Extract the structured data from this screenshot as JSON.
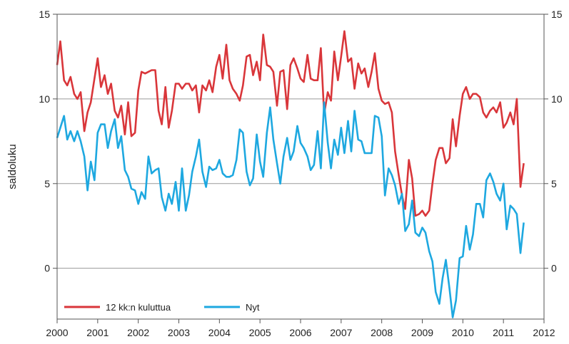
{
  "chart_data": {
    "type": "line",
    "ylabel": "saldoluku",
    "xlim": [
      2000,
      2012
    ],
    "ylim": [
      -3,
      15
    ],
    "x_ticks": [
      "2000",
      "2001",
      "2002",
      "2003",
      "2004",
      "2005",
      "2006",
      "2007",
      "2008",
      "2009",
      "2010",
      "2011",
      "2012"
    ],
    "y_ticks": [
      "0",
      "5",
      "10",
      "15"
    ],
    "y_gridlines": [
      0,
      5,
      10
    ],
    "grid": true,
    "legend_position": "bottom-left",
    "series": [
      {
        "name": "12 kk:n kuluttua",
        "color": "#d9363a",
        "values": [
          [
            2000.0,
            12.0
          ],
          [
            2000.08,
            13.4
          ],
          [
            2000.17,
            11.1
          ],
          [
            2000.25,
            10.8
          ],
          [
            2000.33,
            11.3
          ],
          [
            2000.42,
            10.3
          ],
          [
            2000.5,
            10.0
          ],
          [
            2000.58,
            10.4
          ],
          [
            2000.67,
            8.1
          ],
          [
            2000.75,
            9.2
          ],
          [
            2000.83,
            9.8
          ],
          [
            2000.92,
            11.2
          ],
          [
            2001.0,
            12.4
          ],
          [
            2001.08,
            10.7
          ],
          [
            2001.17,
            11.4
          ],
          [
            2001.25,
            10.3
          ],
          [
            2001.33,
            10.9
          ],
          [
            2001.42,
            9.3
          ],
          [
            2001.5,
            8.9
          ],
          [
            2001.58,
            9.6
          ],
          [
            2001.67,
            7.9
          ],
          [
            2001.75,
            9.8
          ],
          [
            2001.83,
            7.8
          ],
          [
            2001.92,
            8.0
          ],
          [
            2002.0,
            10.5
          ],
          [
            2002.08,
            11.6
          ],
          [
            2002.17,
            11.5
          ],
          [
            2002.25,
            11.6
          ],
          [
            2002.33,
            11.7
          ],
          [
            2002.42,
            11.7
          ],
          [
            2002.5,
            9.3
          ],
          [
            2002.58,
            8.5
          ],
          [
            2002.67,
            10.7
          ],
          [
            2002.75,
            8.3
          ],
          [
            2002.83,
            9.3
          ],
          [
            2002.92,
            10.9
          ],
          [
            2003.0,
            10.9
          ],
          [
            2003.08,
            10.6
          ],
          [
            2003.17,
            10.9
          ],
          [
            2003.25,
            10.9
          ],
          [
            2003.33,
            10.5
          ],
          [
            2003.42,
            10.8
          ],
          [
            2003.5,
            9.2
          ],
          [
            2003.58,
            10.8
          ],
          [
            2003.67,
            10.5
          ],
          [
            2003.75,
            11.1
          ],
          [
            2003.83,
            10.4
          ],
          [
            2003.92,
            11.9
          ],
          [
            2004.0,
            12.6
          ],
          [
            2004.08,
            11.2
          ],
          [
            2004.17,
            13.2
          ],
          [
            2004.25,
            11.1
          ],
          [
            2004.33,
            10.6
          ],
          [
            2004.42,
            10.3
          ],
          [
            2004.5,
            9.9
          ],
          [
            2004.58,
            10.8
          ],
          [
            2004.67,
            12.5
          ],
          [
            2004.75,
            12.6
          ],
          [
            2004.83,
            11.4
          ],
          [
            2004.92,
            12.2
          ],
          [
            2005.0,
            11.1
          ],
          [
            2005.08,
            13.8
          ],
          [
            2005.17,
            12.0
          ],
          [
            2005.25,
            11.9
          ],
          [
            2005.33,
            11.6
          ],
          [
            2005.42,
            9.6
          ],
          [
            2005.5,
            11.6
          ],
          [
            2005.58,
            11.7
          ],
          [
            2005.67,
            9.4
          ],
          [
            2005.75,
            12.0
          ],
          [
            2005.83,
            12.4
          ],
          [
            2005.92,
            11.8
          ],
          [
            2006.0,
            11.2
          ],
          [
            2006.08,
            11.0
          ],
          [
            2006.17,
            12.6
          ],
          [
            2006.25,
            11.2
          ],
          [
            2006.33,
            11.1
          ],
          [
            2006.42,
            11.1
          ],
          [
            2006.5,
            13.0
          ],
          [
            2006.58,
            9.1
          ],
          [
            2006.67,
            10.4
          ],
          [
            2006.75,
            9.9
          ],
          [
            2006.83,
            12.8
          ],
          [
            2006.92,
            11.1
          ],
          [
            2007.0,
            12.5
          ],
          [
            2007.08,
            14.0
          ],
          [
            2007.17,
            12.2
          ],
          [
            2007.25,
            12.4
          ],
          [
            2007.33,
            10.6
          ],
          [
            2007.42,
            12.1
          ],
          [
            2007.5,
            11.5
          ],
          [
            2007.58,
            11.8
          ],
          [
            2007.67,
            10.7
          ],
          [
            2007.75,
            11.6
          ],
          [
            2007.83,
            12.7
          ],
          [
            2007.92,
            10.6
          ],
          [
            2008.0,
            9.9
          ],
          [
            2008.08,
            9.7
          ],
          [
            2008.17,
            9.8
          ],
          [
            2008.25,
            9.2
          ],
          [
            2008.33,
            6.9
          ],
          [
            2008.42,
            5.5
          ],
          [
            2008.5,
            4.3
          ],
          [
            2008.58,
            3.5
          ],
          [
            2008.67,
            6.4
          ],
          [
            2008.75,
            5.3
          ],
          [
            2008.83,
            3.1
          ],
          [
            2008.92,
            3.2
          ],
          [
            2009.0,
            3.4
          ],
          [
            2009.08,
            3.1
          ],
          [
            2009.17,
            3.4
          ],
          [
            2009.25,
            5.0
          ],
          [
            2009.33,
            6.4
          ],
          [
            2009.42,
            7.1
          ],
          [
            2009.5,
            7.1
          ],
          [
            2009.58,
            6.2
          ],
          [
            2009.67,
            6.5
          ],
          [
            2009.75,
            8.8
          ],
          [
            2009.83,
            7.2
          ],
          [
            2009.92,
            9.0
          ],
          [
            2010.0,
            10.3
          ],
          [
            2010.08,
            10.7
          ],
          [
            2010.17,
            10.0
          ],
          [
            2010.25,
            10.3
          ],
          [
            2010.33,
            10.3
          ],
          [
            2010.42,
            10.1
          ],
          [
            2010.5,
            9.2
          ],
          [
            2010.58,
            8.9
          ],
          [
            2010.67,
            9.3
          ],
          [
            2010.75,
            9.5
          ],
          [
            2010.83,
            9.2
          ],
          [
            2010.92,
            9.8
          ],
          [
            2011.0,
            8.3
          ],
          [
            2011.08,
            8.6
          ],
          [
            2011.17,
            9.2
          ],
          [
            2011.25,
            8.5
          ],
          [
            2011.33,
            10.0
          ],
          [
            2011.42,
            4.8
          ],
          [
            2011.5,
            6.2
          ]
        ]
      },
      {
        "name": "Nyt",
        "color": "#1ea8e0",
        "values": [
          [
            2000.0,
            7.7
          ],
          [
            2000.08,
            8.3
          ],
          [
            2000.17,
            9.0
          ],
          [
            2000.25,
            7.6
          ],
          [
            2000.33,
            8.1
          ],
          [
            2000.42,
            7.5
          ],
          [
            2000.5,
            8.1
          ],
          [
            2000.58,
            7.5
          ],
          [
            2000.67,
            6.6
          ],
          [
            2000.75,
            4.6
          ],
          [
            2000.83,
            6.3
          ],
          [
            2000.92,
            5.2
          ],
          [
            2001.0,
            8.0
          ],
          [
            2001.08,
            8.5
          ],
          [
            2001.17,
            8.5
          ],
          [
            2001.25,
            7.1
          ],
          [
            2001.33,
            8.1
          ],
          [
            2001.42,
            8.8
          ],
          [
            2001.5,
            7.1
          ],
          [
            2001.58,
            7.8
          ],
          [
            2001.67,
            5.8
          ],
          [
            2001.75,
            5.4
          ],
          [
            2001.83,
            4.7
          ],
          [
            2001.92,
            4.6
          ],
          [
            2002.0,
            3.8
          ],
          [
            2002.08,
            4.5
          ],
          [
            2002.17,
            4.1
          ],
          [
            2002.25,
            6.6
          ],
          [
            2002.33,
            5.6
          ],
          [
            2002.42,
            5.8
          ],
          [
            2002.5,
            5.9
          ],
          [
            2002.58,
            4.2
          ],
          [
            2002.67,
            3.4
          ],
          [
            2002.75,
            4.4
          ],
          [
            2002.83,
            3.8
          ],
          [
            2002.92,
            5.1
          ],
          [
            2003.0,
            3.4
          ],
          [
            2003.08,
            5.9
          ],
          [
            2003.17,
            3.4
          ],
          [
            2003.25,
            4.3
          ],
          [
            2003.33,
            5.7
          ],
          [
            2003.42,
            6.6
          ],
          [
            2003.5,
            7.6
          ],
          [
            2003.58,
            5.7
          ],
          [
            2003.67,
            4.8
          ],
          [
            2003.75,
            6.0
          ],
          [
            2003.83,
            5.8
          ],
          [
            2003.92,
            5.9
          ],
          [
            2004.0,
            6.4
          ],
          [
            2004.08,
            5.6
          ],
          [
            2004.17,
            5.4
          ],
          [
            2004.25,
            5.4
          ],
          [
            2004.33,
            5.5
          ],
          [
            2004.42,
            6.4
          ],
          [
            2004.5,
            8.2
          ],
          [
            2004.58,
            8.0
          ],
          [
            2004.67,
            5.7
          ],
          [
            2004.75,
            4.9
          ],
          [
            2004.83,
            5.3
          ],
          [
            2004.92,
            7.9
          ],
          [
            2005.0,
            6.3
          ],
          [
            2005.08,
            5.4
          ],
          [
            2005.17,
            8.0
          ],
          [
            2005.25,
            9.5
          ],
          [
            2005.33,
            7.6
          ],
          [
            2005.42,
            6.2
          ],
          [
            2005.5,
            5.0
          ],
          [
            2005.58,
            6.6
          ],
          [
            2005.67,
            7.7
          ],
          [
            2005.75,
            6.4
          ],
          [
            2005.83,
            6.9
          ],
          [
            2005.92,
            8.4
          ],
          [
            2006.0,
            7.4
          ],
          [
            2006.08,
            7.1
          ],
          [
            2006.17,
            6.6
          ],
          [
            2006.25,
            5.8
          ],
          [
            2006.33,
            6.1
          ],
          [
            2006.42,
            8.1
          ],
          [
            2006.5,
            5.9
          ],
          [
            2006.58,
            9.8
          ],
          [
            2006.67,
            7.4
          ],
          [
            2006.75,
            5.9
          ],
          [
            2006.83,
            7.6
          ],
          [
            2006.92,
            6.7
          ],
          [
            2007.0,
            8.3
          ],
          [
            2007.08,
            6.8
          ],
          [
            2007.17,
            8.7
          ],
          [
            2007.25,
            6.9
          ],
          [
            2007.33,
            9.3
          ],
          [
            2007.42,
            7.6
          ],
          [
            2007.5,
            7.5
          ],
          [
            2007.58,
            6.8
          ],
          [
            2007.67,
            6.8
          ],
          [
            2007.75,
            6.8
          ],
          [
            2007.83,
            9.0
          ],
          [
            2007.92,
            8.9
          ],
          [
            2008.0,
            7.8
          ],
          [
            2008.08,
            4.3
          ],
          [
            2008.17,
            5.9
          ],
          [
            2008.25,
            5.5
          ],
          [
            2008.33,
            4.9
          ],
          [
            2008.42,
            3.8
          ],
          [
            2008.5,
            4.4
          ],
          [
            2008.58,
            2.2
          ],
          [
            2008.67,
            2.6
          ],
          [
            2008.75,
            4.0
          ],
          [
            2008.83,
            2.1
          ],
          [
            2008.92,
            1.9
          ],
          [
            2009.0,
            2.4
          ],
          [
            2009.08,
            2.1
          ],
          [
            2009.17,
            1.0
          ],
          [
            2009.25,
            0.4
          ],
          [
            2009.33,
            -1.4
          ],
          [
            2009.42,
            -2.1
          ],
          [
            2009.5,
            -0.6
          ],
          [
            2009.58,
            0.5
          ],
          [
            2009.67,
            -1.2
          ],
          [
            2009.75,
            -2.9
          ],
          [
            2009.83,
            -1.9
          ],
          [
            2009.92,
            0.6
          ],
          [
            2010.0,
            0.7
          ],
          [
            2010.08,
            2.5
          ],
          [
            2010.17,
            1.1
          ],
          [
            2010.25,
            2.0
          ],
          [
            2010.33,
            3.8
          ],
          [
            2010.42,
            3.8
          ],
          [
            2010.5,
            3.0
          ],
          [
            2010.58,
            5.2
          ],
          [
            2010.67,
            5.6
          ],
          [
            2010.75,
            5.1
          ],
          [
            2010.83,
            4.4
          ],
          [
            2010.92,
            4.0
          ],
          [
            2011.0,
            5.0
          ],
          [
            2011.08,
            2.3
          ],
          [
            2011.17,
            3.7
          ],
          [
            2011.25,
            3.5
          ],
          [
            2011.33,
            3.2
          ],
          [
            2011.42,
            0.9
          ],
          [
            2011.5,
            2.7
          ]
        ]
      }
    ]
  }
}
